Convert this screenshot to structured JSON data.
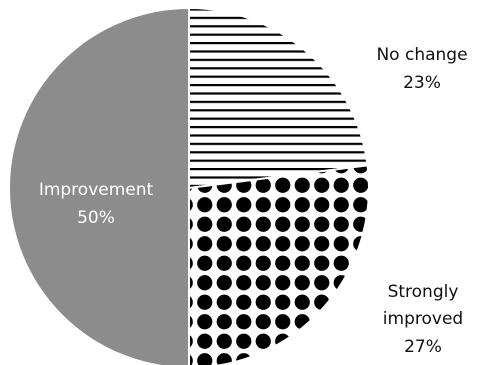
{
  "chart_data": {
    "type": "pie",
    "title": "",
    "legend": "none",
    "slices": [
      {
        "label": "Improvement",
        "value": 50,
        "value_label": "50%",
        "fill": "solid",
        "color": "#8c8c8c",
        "label_color": "#ffffff"
      },
      {
        "label": "No change",
        "value": 23,
        "value_label": "23%",
        "fill": "horizontal-stripes",
        "color": "#000000",
        "label_color": "#111111"
      },
      {
        "label": "Strongly improved",
        "value": 27,
        "value_label": "27%",
        "fill": "polka-dots",
        "color": "#000000",
        "label_color": "#111111"
      }
    ]
  }
}
